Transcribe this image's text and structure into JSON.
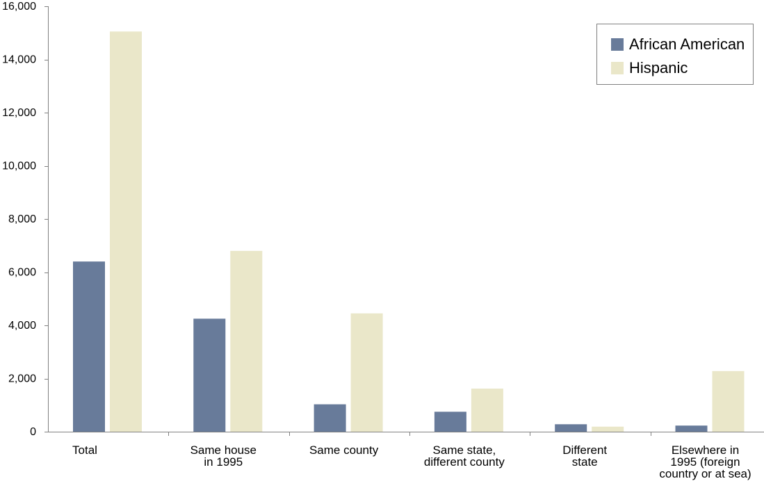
{
  "chart_data": {
    "type": "bar",
    "categories": [
      [
        "Total"
      ],
      [
        "Same house",
        "in 1995"
      ],
      [
        "Same county"
      ],
      [
        "Same state,",
        "different county"
      ],
      [
        "Different",
        "state"
      ],
      [
        "Elsewhere in",
        "1995 (foreign",
        "country or at sea)"
      ]
    ],
    "series": [
      {
        "name": "African American",
        "color": "#687b9a",
        "values": [
          6400,
          4250,
          1030,
          750,
          280,
          230
        ]
      },
      {
        "name": "Hispanic",
        "color": "#eae7c9",
        "values": [
          15050,
          6800,
          4450,
          1620,
          190,
          2280
        ]
      }
    ],
    "ylim": [
      0,
      16000
    ],
    "yticks": [
      0,
      2000,
      4000,
      6000,
      8000,
      10000,
      12000,
      14000,
      16000
    ],
    "ytick_labels": [
      "0",
      "2,000",
      "4,000",
      "6,000",
      "8,000",
      "10,000",
      "12,000",
      "14,000",
      "16,000"
    ],
    "legend_position": "top-right",
    "grid": false
  }
}
